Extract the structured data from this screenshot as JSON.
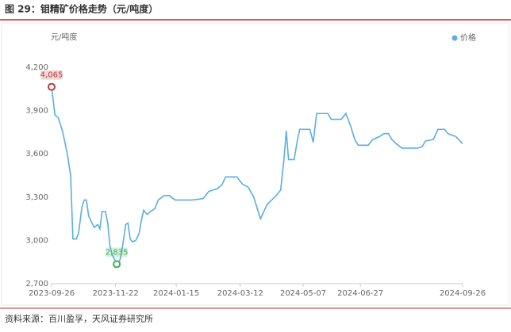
{
  "chart_data": {
    "type": "line",
    "title": "图 29：钼精矿价格走势（元/吨度）",
    "y_unit": "元/吨度",
    "source": "资料来源：百川盈孚，天风证券研究所",
    "grid": false,
    "legend": "top-right",
    "xlim": [
      "2023-09-26",
      "2024-09-26"
    ],
    "xticks": [
      "2023-09-26",
      "2023-11-22",
      "2024-01-15",
      "2024-03-12",
      "2024-05-07",
      "2024-06-27",
      "2024-09-26"
    ],
    "ylim": [
      2700,
      4200
    ],
    "yticks": [
      {
        "value": 2700,
        "label": "2,700"
      },
      {
        "value": 3000,
        "label": "3,000"
      },
      {
        "value": 3300,
        "label": "3,300"
      },
      {
        "value": 3600,
        "label": "3,600"
      },
      {
        "value": 3900,
        "label": "3,900"
      },
      {
        "value": 4200,
        "label": "4,200"
      }
    ],
    "x": [
      "2023-09-26",
      "2023-09-29",
      "2023-10-02",
      "2023-10-06",
      "2023-10-10",
      "2023-10-13",
      "2023-10-15",
      "2023-10-18",
      "2023-10-20",
      "2023-10-23",
      "2023-10-25",
      "2023-10-27",
      "2023-10-29",
      "2023-11-01",
      "2023-11-03",
      "2023-11-06",
      "2023-11-08",
      "2023-11-10",
      "2023-11-13",
      "2023-11-15",
      "2023-11-17",
      "2023-11-19",
      "2023-11-21",
      "2023-11-23",
      "2023-11-25",
      "2023-11-27",
      "2023-11-29",
      "2023-12-01",
      "2023-12-03",
      "2023-12-05",
      "2023-12-07",
      "2023-12-10",
      "2023-12-13",
      "2023-12-15",
      "2023-12-17",
      "2023-12-20",
      "2023-12-23",
      "2023-12-27",
      "2023-12-30",
      "2024-01-04",
      "2024-01-09",
      "2024-01-14",
      "2024-01-29",
      "2024-02-08",
      "2024-02-13",
      "2024-02-21",
      "2024-02-25",
      "2024-02-28",
      "2024-03-09",
      "2024-03-14",
      "2024-03-19",
      "2024-03-24",
      "2024-03-30",
      "2024-04-05",
      "2024-04-09",
      "2024-04-13",
      "2024-04-17",
      "2024-04-20",
      "2024-04-22",
      "2024-04-24",
      "2024-04-29",
      "2024-05-02",
      "2024-05-04",
      "2024-05-13",
      "2024-05-16",
      "2024-05-19",
      "2024-05-29",
      "2024-06-01",
      "2024-06-10",
      "2024-06-14",
      "2024-06-18",
      "2024-06-22",
      "2024-06-25",
      "2024-07-04",
      "2024-07-08",
      "2024-07-14",
      "2024-07-18",
      "2024-07-22",
      "2024-07-25",
      "2024-07-29",
      "2024-08-03",
      "2024-08-17",
      "2024-08-21",
      "2024-08-24",
      "2024-08-31",
      "2024-09-04",
      "2024-09-10",
      "2024-09-13",
      "2024-09-20",
      "2024-09-26"
    ],
    "series": [
      {
        "name": "价格",
        "color": "#5aaee0",
        "values": [
          4065,
          3870,
          3850,
          3750,
          3600,
          3450,
          3010,
          3010,
          3050,
          3230,
          3280,
          3280,
          3170,
          3120,
          3090,
          3110,
          3080,
          3200,
          3200,
          3120,
          2960,
          2900,
          2870,
          2835,
          2840,
          2900,
          3000,
          3110,
          3120,
          3010,
          2990,
          3000,
          3050,
          3140,
          3210,
          3180,
          3200,
          3220,
          3280,
          3310,
          3310,
          3280,
          3280,
          3290,
          3340,
          3360,
          3390,
          3440,
          3440,
          3390,
          3370,
          3300,
          3150,
          3250,
          3280,
          3310,
          3350,
          3570,
          3760,
          3560,
          3560,
          3700,
          3770,
          3770,
          3680,
          3880,
          3880,
          3840,
          3840,
          3880,
          3800,
          3700,
          3660,
          3660,
          3700,
          3720,
          3740,
          3740,
          3700,
          3670,
          3640,
          3640,
          3650,
          3690,
          3700,
          3770,
          3770,
          3740,
          3720,
          3670
        ]
      }
    ],
    "annotations": [
      {
        "label": "4,065",
        "x": "2023-09-26",
        "value": 4065,
        "color": "#b83b3b"
      },
      {
        "label": "2,835",
        "x": "2023-11-23",
        "value": 2835,
        "color": "#3fae5a"
      }
    ]
  }
}
